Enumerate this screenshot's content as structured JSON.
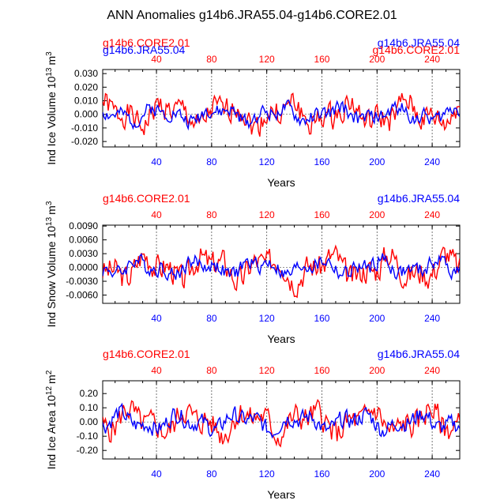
{
  "figure": {
    "title": "ANN Anomalies g14b6.JRA55.04-g14b6.CORE2.01"
  },
  "series_colors": {
    "CORE2": "#ff0000",
    "JRA55": "#0000ff"
  },
  "chart_data": [
    {
      "type": "line",
      "id": "panel1",
      "title": "",
      "legend": {
        "left": "g14b6.CORE2.01",
        "right": "g14b6.JRA55.04",
        "left_alt": "g14b6.JRA55.04",
        "right_alt": "g14b6.CORE2.01"
      },
      "ylabel_main": "Ind Ice Volume 10",
      "ylabel_exp": "13",
      "ylabel_unit": "m",
      "ylabel_unit_exp": "3",
      "xlabel": "Years",
      "xlim": [
        1,
        260
      ],
      "ylim": [
        -0.024,
        0.033
      ],
      "yticks": [
        -0.02,
        -0.01,
        0.0,
        0.01,
        0.02,
        0.03
      ],
      "ytick_labels": [
        "-0.020",
        "-0.010",
        "0.000",
        "0.010",
        "0.020",
        "0.030"
      ],
      "top_xticks": [
        40,
        80,
        120,
        160,
        200,
        240
      ],
      "bottom_xticks": [
        40,
        80,
        120,
        160,
        200,
        240
      ],
      "series": [
        {
          "name": "g14b6.CORE2.01",
          "color": "#ff0000",
          "amp": 0.012,
          "seed": 1
        },
        {
          "name": "g14b6.JRA55.04",
          "color": "#0000ff",
          "amp": 0.007,
          "seed": 2
        }
      ]
    },
    {
      "type": "line",
      "id": "panel2",
      "title": "",
      "legend": {
        "left": "g14b6.CORE2.01",
        "right": "g14b6.JRA55.04"
      },
      "ylabel_main": "Ind Snow Volume 10",
      "ylabel_exp": "13",
      "ylabel_unit": "m",
      "ylabel_unit_exp": "3",
      "xlabel": "Years",
      "xlim": [
        1,
        260
      ],
      "ylim": [
        -0.0078,
        0.0092
      ],
      "yticks": [
        -0.006,
        -0.003,
        0.0,
        0.003,
        0.006,
        0.009
      ],
      "ytick_labels": [
        "-0.0060",
        "-0.0030",
        "0.0000",
        "0.0030",
        "0.0060",
        "0.0090"
      ],
      "top_xticks": [
        40,
        80,
        120,
        160,
        200,
        240
      ],
      "bottom_xticks": [
        40,
        80,
        120,
        160,
        200,
        240
      ],
      "series": [
        {
          "name": "g14b6.CORE2.01",
          "color": "#ff0000",
          "amp": 0.0038,
          "seed": 3
        },
        {
          "name": "g14b6.JRA55.04",
          "color": "#0000ff",
          "amp": 0.0022,
          "seed": 4
        }
      ]
    },
    {
      "type": "line",
      "id": "panel3",
      "title": "",
      "legend": {
        "left": "g14b6.CORE2.01",
        "right": "g14b6.JRA55.04"
      },
      "ylabel_main": "Ind Ice Area 10",
      "ylabel_exp": "12",
      "ylabel_unit": "m",
      "ylabel_unit_exp": "2",
      "xlabel": "Years",
      "xlim": [
        1,
        260
      ],
      "ylim": [
        -0.26,
        0.29
      ],
      "yticks": [
        -0.2,
        -0.1,
        0.0,
        0.1,
        0.2
      ],
      "ytick_labels": [
        "-0.20",
        "-0.10",
        "0.00",
        "0.10",
        "0.20"
      ],
      "top_xticks": [
        40,
        80,
        120,
        160,
        200,
        240
      ],
      "bottom_xticks": [
        40,
        80,
        120,
        160,
        200,
        240
      ],
      "series": [
        {
          "name": "g14b6.CORE2.01",
          "color": "#ff0000",
          "amp": 0.12,
          "seed": 5
        },
        {
          "name": "g14b6.JRA55.04",
          "color": "#0000ff",
          "amp": 0.08,
          "seed": 6
        }
      ]
    }
  ]
}
